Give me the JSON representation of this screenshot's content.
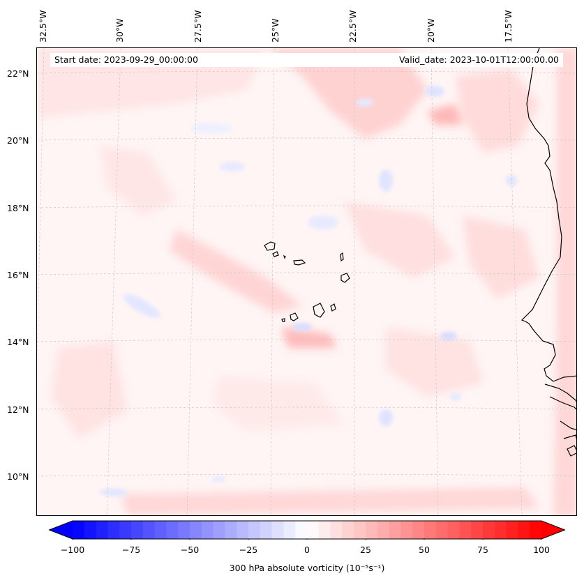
{
  "header": {
    "start_date": "Start date: 2023-09-29_00:00:00",
    "valid_date": "Valid_date: 2023-10-01T12:00:00.00"
  },
  "axes": {
    "longitude_labels": [
      {
        "value": -32.5,
        "text": "32.5°W"
      },
      {
        "value": -30.0,
        "text": "30°W"
      },
      {
        "value": -27.5,
        "text": "27.5°W"
      },
      {
        "value": -25.0,
        "text": "25°W"
      },
      {
        "value": -22.5,
        "text": "22.5°W"
      },
      {
        "value": -20.0,
        "text": "20°W"
      },
      {
        "value": -17.5,
        "text": "17.5°W"
      }
    ],
    "latitude_labels": [
      {
        "value": 22,
        "text": "22°N"
      },
      {
        "value": 20,
        "text": "20°N"
      },
      {
        "value": 18,
        "text": "18°N"
      },
      {
        "value": 16,
        "text": "16°N"
      },
      {
        "value": 14,
        "text": "14°N"
      },
      {
        "value": 12,
        "text": "12°N"
      },
      {
        "value": 10,
        "text": "10°N"
      }
    ]
  },
  "colorbar": {
    "label": "300 hPa absolute vorticity (10⁻⁵s⁻¹)",
    "min": -100,
    "max": 100,
    "ticks": [
      {
        "value": -100,
        "text": "−100"
      },
      {
        "value": -75,
        "text": "−75"
      },
      {
        "value": -50,
        "text": "−50"
      },
      {
        "value": -25,
        "text": "−25"
      },
      {
        "value": 0,
        "text": "0"
      },
      {
        "value": 25,
        "text": "25"
      },
      {
        "value": 50,
        "text": "50"
      },
      {
        "value": 75,
        "text": "75"
      },
      {
        "value": 100,
        "text": "100"
      }
    ],
    "colormap": "bwr",
    "color_low": "#0000ff",
    "color_mid": "#ffffff",
    "color_high": "#ff0000"
  },
  "map": {
    "field": "300 hPa absolute vorticity",
    "region": "Cape Verde Islands and West African coast"
  }
}
